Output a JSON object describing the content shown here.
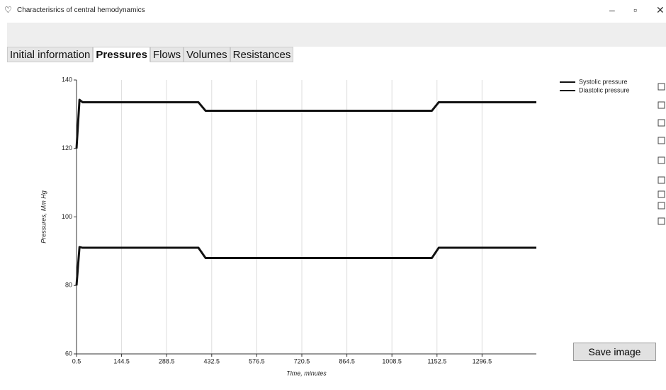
{
  "window": {
    "title": "Characterisrics of central hemodynamics"
  },
  "tabs": [
    "Initial information",
    "Pressures",
    "Flows",
    "Volumes",
    "Resistances"
  ],
  "active_tab": 1,
  "button": "Save image",
  "chart_data": {
    "type": "line",
    "x_label": "Time, minutes",
    "y_label": "Pressures, Mm Hg",
    "x": [
      0.5,
      10,
      20,
      390,
      413,
      1136,
      1158,
      1470
    ],
    "series": [
      {
        "name": "Systolic pressure",
        "color": "#111111",
        "values": [
          120,
          134.2,
          133.5,
          133.5,
          131,
          131,
          133.5,
          133.5
        ]
      },
      {
        "name": "Diastolic pressure",
        "color": "#111111",
        "values": [
          80,
          91.2,
          91,
          91,
          88,
          88,
          91,
          91
        ]
      }
    ],
    "xlim": [
      0.5,
      1470
    ],
    "ylim": [
      60,
      140
    ],
    "xticks": [
      0.5,
      144.5,
      288.5,
      432.5,
      576.5,
      720.5,
      864.5,
      1008.5,
      1152.5,
      1296.5
    ],
    "yticks": [
      60,
      80,
      100,
      120,
      140
    ],
    "grid": true,
    "legend": "top-right"
  }
}
